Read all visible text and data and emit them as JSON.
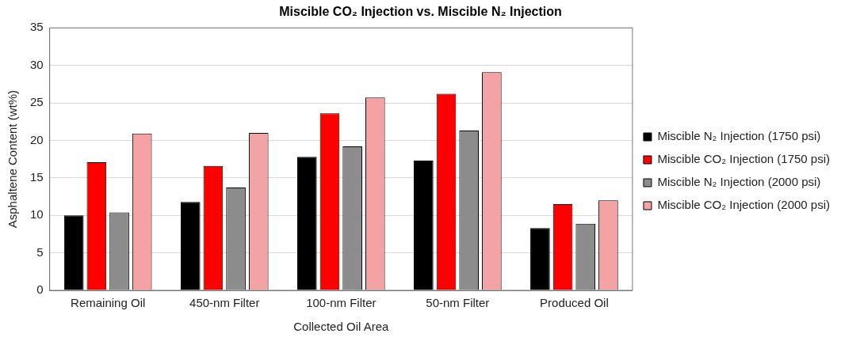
{
  "chart_data": {
    "type": "bar",
    "title": "Miscible CO₂ Injection vs. Miscible N₂ Injection",
    "xlabel": "Collected Oil Area",
    "ylabel": "Asphaltene Content (wt%)",
    "categories": [
      "Remaining Oil",
      "450-nm Filter",
      "100-nm Filter",
      "50-nm Filter",
      "Produced Oil"
    ],
    "series": [
      {
        "name": "Miscible N₂ Injection (1750 psi)",
        "color": "#000000",
        "values": [
          10.0,
          11.8,
          17.8,
          17.3,
          8.3
        ]
      },
      {
        "name": "Miscible CO₂ Injection (1750 psi)",
        "color": "#ff0000",
        "values": [
          17.1,
          16.6,
          23.6,
          26.2,
          11.5
        ]
      },
      {
        "name": "Miscible N₂ Injection (2000 psi)",
        "color": "#8c8c8c",
        "values": [
          10.4,
          13.7,
          19.2,
          21.3,
          8.9
        ]
      },
      {
        "name": "Miscible CO₂ Injection (2000 psi)",
        "color": "#f3a3a3",
        "values": [
          20.9,
          21.0,
          25.7,
          29.1,
          12.0
        ]
      }
    ],
    "ylim": [
      0,
      35
    ],
    "yticks": [
      0,
      5,
      10,
      15,
      20,
      25,
      30,
      35
    ],
    "grid": "y",
    "legend": "right"
  }
}
